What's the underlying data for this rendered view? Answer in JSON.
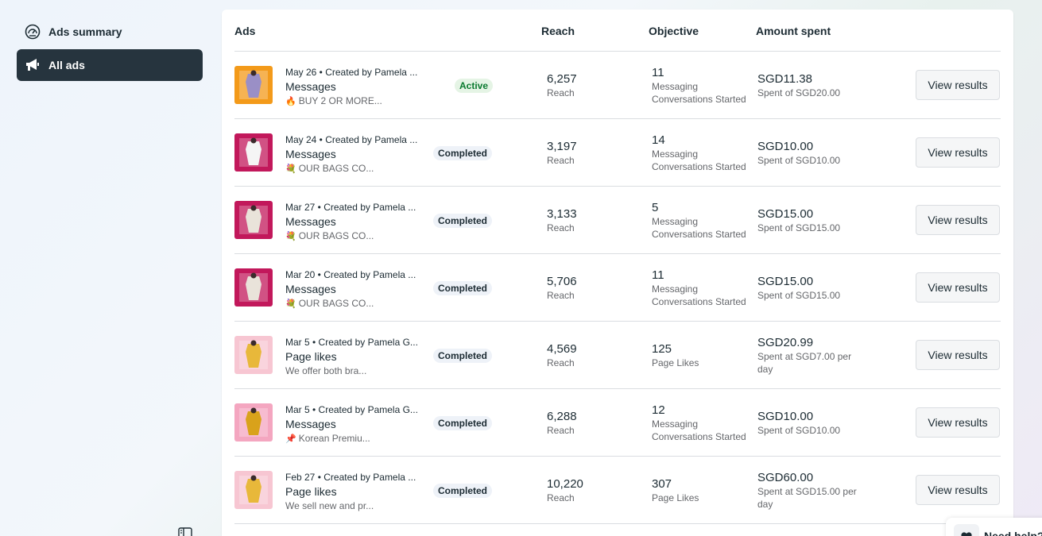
{
  "sidebar": {
    "items": [
      {
        "label": "Ads summary",
        "icon": "gauge-icon"
      },
      {
        "label": "All ads",
        "icon": "megaphone-icon"
      }
    ]
  },
  "table": {
    "headers": {
      "ads": "Ads",
      "reach": "Reach",
      "objective": "Objective",
      "amount": "Amount spent"
    },
    "rows": [
      {
        "date": "May 26 • Created by Pamela ...",
        "type": "Messages",
        "emoji": "🔥",
        "text": "BUY 2 OR MORE...",
        "status": "Active",
        "reach": "6,257",
        "reach_label": "Reach",
        "objective_value": "11",
        "objective_label": "Messaging Conversations Started",
        "amount": "SGD11.38",
        "amount_label": "Spent of SGD20.00",
        "button": "View results",
        "thumb_bg": "#f39a1a",
        "thumb_fg": "#9a8fc6"
      },
      {
        "date": "May 24 • Created by Pamela ...",
        "type": "Messages",
        "emoji": "💐",
        "text": "OUR BAGS CO...",
        "status": "Completed",
        "reach": "3,197",
        "reach_label": "Reach",
        "objective_value": "14",
        "objective_label": "Messaging Conversations Started",
        "amount": "SGD10.00",
        "amount_label": "Spent of SGD10.00",
        "button": "View results",
        "thumb_bg": "#c2185b",
        "thumb_fg": "#f5f5f5"
      },
      {
        "date": "Mar 27 • Created by Pamela ...",
        "type": "Messages",
        "emoji": "💐",
        "text": "OUR BAGS CO...",
        "status": "Completed",
        "reach": "3,133",
        "reach_label": "Reach",
        "objective_value": "5",
        "objective_label": "Messaging Conversations Started",
        "amount": "SGD15.00",
        "amount_label": "Spent of SGD15.00",
        "button": "View results",
        "thumb_bg": "#c2185b",
        "thumb_fg": "#e9e3da"
      },
      {
        "date": "Mar 20 • Created by Pamela ...",
        "type": "Messages",
        "emoji": "💐",
        "text": "OUR BAGS CO...",
        "status": "Completed",
        "reach": "5,706",
        "reach_label": "Reach",
        "objective_value": "11",
        "objective_label": "Messaging Conversations Started",
        "amount": "SGD15.00",
        "amount_label": "Spent of SGD15.00",
        "button": "View results",
        "thumb_bg": "#c2185b",
        "thumb_fg": "#e9e3da"
      },
      {
        "date": "Mar 5 • Created by Pamela G...",
        "type": "Page likes",
        "emoji": "",
        "text": "We offer both bra...",
        "status": "Completed",
        "reach": "4,569",
        "reach_label": "Reach",
        "objective_value": "125",
        "objective_label": "Page Likes",
        "amount": "SGD20.99",
        "amount_label": "Spent at SGD7.00 per day",
        "button": "View results",
        "thumb_bg": "#f7c6d2",
        "thumb_fg": "#e8b83a"
      },
      {
        "date": "Mar 5 • Created by Pamela G...",
        "type": "Messages",
        "emoji": "📌",
        "text": "Korean Premiu...",
        "status": "Completed",
        "reach": "6,288",
        "reach_label": "Reach",
        "objective_value": "12",
        "objective_label": "Messaging Conversations Started",
        "amount": "SGD10.00",
        "amount_label": "Spent of SGD10.00",
        "button": "View results",
        "thumb_bg": "#f4a6c0",
        "thumb_fg": "#d9a21b"
      },
      {
        "date": "Feb 27 • Created by Pamela ...",
        "type": "Page likes",
        "emoji": "",
        "text": "We sell new and pr...",
        "status": "Completed",
        "reach": "10,220",
        "reach_label": "Reach",
        "objective_value": "307",
        "objective_label": "Page Likes",
        "amount": "SGD60.00",
        "amount_label": "Spent at SGD15.00 per day",
        "button": "View results",
        "thumb_bg": "#f7c6d2",
        "thumb_fg": "#e8b83a"
      }
    ]
  },
  "help": {
    "label": "Need help?"
  }
}
